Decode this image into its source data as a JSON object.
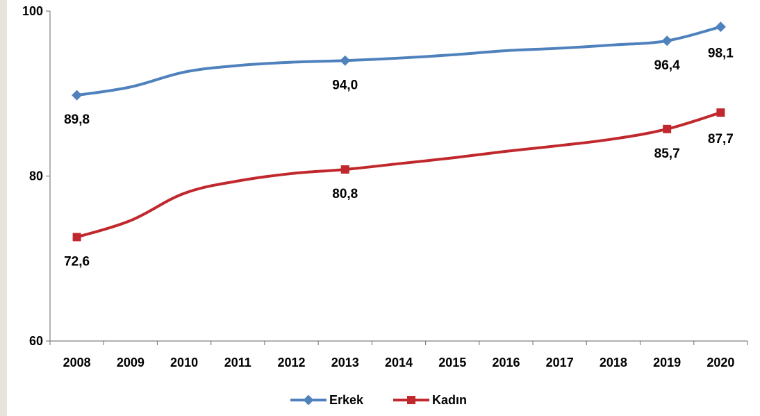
{
  "chart_data": {
    "type": "line",
    "title": "",
    "xlabel": "",
    "ylabel": "",
    "ylim": [
      60,
      100
    ],
    "yticks": [
      60,
      80,
      100
    ],
    "x": [
      "2008",
      "2009",
      "2010",
      "2011",
      "2012",
      "2013",
      "2014",
      "2015",
      "2016",
      "2017",
      "2018",
      "2019",
      "2020"
    ],
    "grid": false,
    "legend_position": "bottom",
    "series": [
      {
        "name": "Erkek",
        "color": "#4f81bd",
        "marker": "diamond",
        "values": [
          89.8,
          90.8,
          92.6,
          93.4,
          93.8,
          94.0,
          94.3,
          94.7,
          95.2,
          95.5,
          95.9,
          96.4,
          98.1
        ],
        "labels": [
          {
            "index": 0,
            "text": "89,8"
          },
          {
            "index": 5,
            "text": "94,0"
          },
          {
            "index": 11,
            "text": "96,4"
          },
          {
            "index": 12,
            "text": "98,1"
          }
        ]
      },
      {
        "name": "Kadın",
        "color": "#c0282d",
        "marker": "square",
        "values": [
          72.6,
          74.6,
          77.9,
          79.4,
          80.3,
          80.8,
          81.5,
          82.2,
          83.0,
          83.7,
          84.5,
          85.7,
          87.7
        ],
        "labels": [
          {
            "index": 0,
            "text": "72,6"
          },
          {
            "index": 5,
            "text": "80,8"
          },
          {
            "index": 11,
            "text": "85,7"
          },
          {
            "index": 12,
            "text": "87,7"
          }
        ]
      }
    ]
  }
}
